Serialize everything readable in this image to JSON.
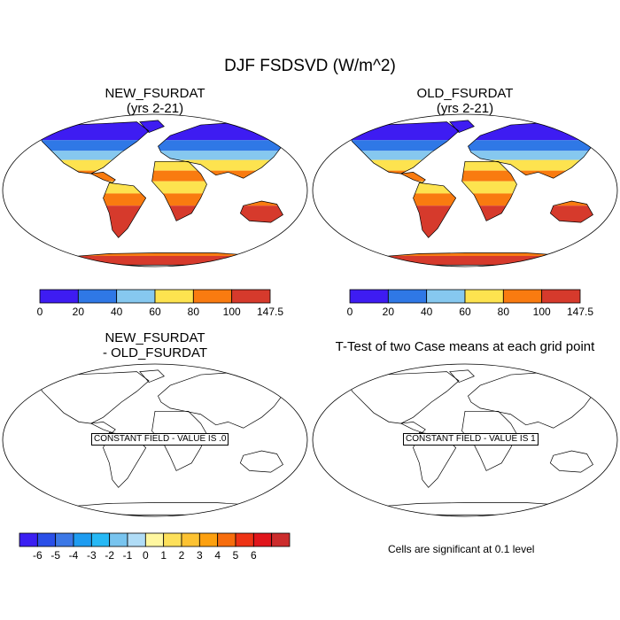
{
  "page": {
    "title": "DJF FSDSVD (W/m^2)"
  },
  "panels": [
    {
      "title_line1": "NEW_FSURDAT",
      "title_line2": "(yrs 2-21)"
    },
    {
      "title_line1": "OLD_FSURDAT",
      "title_line2": "(yrs 2-21)"
    },
    {
      "title_line1": "NEW_FSURDAT",
      "title_line2": "- OLD_FSURDAT",
      "constant_label": "CONSTANT FIELD - VALUE IS .0"
    },
    {
      "title_line1": "T-Test of two Case means at each grid point",
      "title_line2": "",
      "constant_label": "CONSTANT FIELD - VALUE IS 1"
    }
  ],
  "significance_note": "Cells are significant at 0.1 level",
  "chart_data": [
    {
      "type": "heatmap",
      "projection": "robinson",
      "title": "NEW_FSURDAT (yrs 2-21)",
      "colorbar": {
        "ticks": [
          "0",
          "20",
          "40",
          "60",
          "80",
          "100",
          "147.5"
        ],
        "colors": [
          "#3e1cf2",
          "#2f78e6",
          "#86c8ef",
          "#fde34f",
          "#f97b10",
          "#d63a2c"
        ]
      }
    },
    {
      "type": "heatmap",
      "projection": "robinson",
      "title": "OLD_FSURDAT (yrs 2-21)",
      "colorbar": {
        "ticks": [
          "0",
          "20",
          "40",
          "60",
          "80",
          "100",
          "147.5"
        ],
        "colors": [
          "#3e1cf2",
          "#2f78e6",
          "#86c8ef",
          "#fde34f",
          "#f97b10",
          "#d63a2c"
        ]
      }
    },
    {
      "type": "heatmap",
      "projection": "robinson",
      "title": "NEW_FSURDAT - OLD_FSURDAT",
      "constant_value": 0,
      "colorbar": {
        "ticks": [
          "-6",
          "-5",
          "-4",
          "-3",
          "-2",
          "-1",
          "0",
          "1",
          "2",
          "3",
          "4",
          "5",
          "6"
        ],
        "colors": [
          "#3b1ff2",
          "#2a4fe8",
          "#3c78e6",
          "#1e9cf0",
          "#26b8f5",
          "#78c4ef",
          "#b0dcf6",
          "#fff7a0",
          "#fde05a",
          "#fcc232",
          "#fca00f",
          "#f76d0d",
          "#ee3315",
          "#e0151b",
          "#cc2c2c"
        ]
      }
    },
    {
      "type": "heatmap",
      "projection": "robinson",
      "title": "T-Test of two Case means at each grid point",
      "constant_value": 1
    }
  ]
}
